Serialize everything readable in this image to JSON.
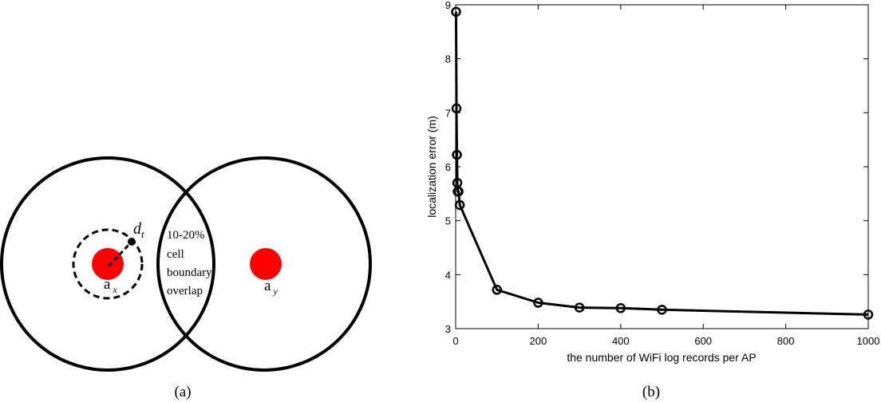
{
  "figure_a": {
    "caption": "(a)",
    "ap_x_label": "a",
    "ap_x_sub": "x",
    "ap_y_label": "a",
    "ap_y_sub": "y",
    "dt_label": "d",
    "dt_sub": "t",
    "overlap_lines": [
      "10-20%",
      "cell",
      "boundary",
      "overlap"
    ],
    "colors": {
      "ap": "#ff0000",
      "stroke": "#000000"
    }
  },
  "figure_b": {
    "caption": "(b)"
  },
  "chart_data": {
    "type": "line",
    "xlabel": "the number of WiFi log records per AP",
    "ylabel": "localization error (m)",
    "xlim": [
      0,
      1000
    ],
    "ylim": [
      3,
      9
    ],
    "xticks": [
      0,
      200,
      400,
      600,
      800,
      1000
    ],
    "yticks": [
      3,
      4,
      5,
      6,
      7,
      8,
      9
    ],
    "grid": false,
    "marker": "circle",
    "series": [
      {
        "x": [
          1,
          2,
          3,
          4,
          5,
          7,
          10,
          100,
          200,
          300,
          400,
          500,
          1000
        ],
        "y": [
          8.87,
          7.08,
          6.22,
          5.7,
          5.54,
          5.54,
          5.29,
          3.72,
          3.48,
          3.39,
          3.38,
          3.35,
          3.26
        ]
      }
    ]
  }
}
